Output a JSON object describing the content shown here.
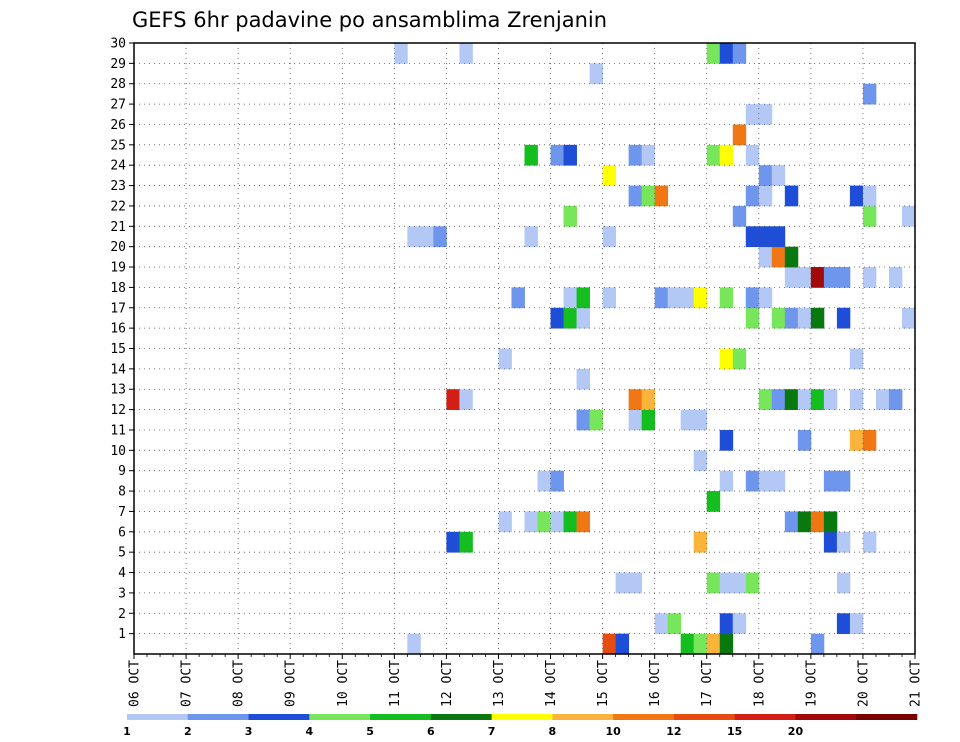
{
  "chart_data": {
    "type": "heatmap",
    "title": "GEFS 6hr padavine po ansamblima Zrenjanin",
    "xlabel": "",
    "ylabel": "",
    "x_tick_labels": [
      "06 OCT",
      "07 OCT",
      "08 OCT",
      "09 OCT",
      "10 OCT",
      "11 OCT",
      "12 OCT",
      "13 OCT",
      "14 OCT",
      "15 OCT",
      "16 OCT",
      "17 OCT",
      "18 OCT",
      "19 OCT",
      "20 OCT",
      "21 OCT"
    ],
    "y_tick_labels": [
      "1",
      "2",
      "3",
      "4",
      "5",
      "6",
      "7",
      "8",
      "9",
      "10",
      "11",
      "12",
      "13",
      "14",
      "15",
      "16",
      "17",
      "18",
      "19",
      "20",
      "21",
      "22",
      "23",
      "24",
      "25",
      "26",
      "27",
      "28",
      "29",
      "30"
    ],
    "xlim": [
      0,
      60
    ],
    "ylim": [
      0,
      30
    ],
    "x_unit": "6-hour steps from 06 OCT 00Z",
    "grid": true,
    "legend": {
      "placement": "bottom",
      "bins": [
        {
          "label": "1",
          "color": "#b4c8f5"
        },
        {
          "label": "2",
          "color": "#6e96ed"
        },
        {
          "label": "3",
          "color": "#1e4ed8"
        },
        {
          "label": "4",
          "color": "#78e65a"
        },
        {
          "label": "5",
          "color": "#14be1e"
        },
        {
          "label": "6",
          "color": "#08780f"
        },
        {
          "label": "7",
          "color": "#ffff00"
        },
        {
          "label": "8",
          "color": "#fab43c"
        },
        {
          "label": "10",
          "color": "#f07814"
        },
        {
          "label": "12",
          "color": "#e64b0f"
        },
        {
          "label": "15",
          "color": "#d21e14"
        },
        {
          "label": "20",
          "color": "#a00a0a"
        },
        {
          "label": "",
          "color": "#780000"
        }
      ]
    },
    "cells": [
      {
        "t": 21,
        "m": 0,
        "c": 0
      },
      {
        "t": 36,
        "m": 0,
        "c": 9
      },
      {
        "t": 37,
        "m": 0,
        "c": 2
      },
      {
        "t": 42,
        "m": 0,
        "c": 4
      },
      {
        "t": 43,
        "m": 0,
        "c": 3
      },
      {
        "t": 44,
        "m": 0,
        "c": 7
      },
      {
        "t": 45,
        "m": 0,
        "c": 5
      },
      {
        "t": 52,
        "m": 0,
        "c": 1
      },
      {
        "t": 40,
        "m": 1,
        "c": 0
      },
      {
        "t": 41,
        "m": 1,
        "c": 3
      },
      {
        "t": 45,
        "m": 1,
        "c": 2
      },
      {
        "t": 46,
        "m": 1,
        "c": 0
      },
      {
        "t": 54,
        "m": 1,
        "c": 2
      },
      {
        "t": 55,
        "m": 1,
        "c": 0
      },
      {
        "t": 37,
        "m": 3,
        "c": 0
      },
      {
        "t": 38,
        "m": 3,
        "c": 0
      },
      {
        "t": 44,
        "m": 3,
        "c": 3
      },
      {
        "t": 45,
        "m": 3,
        "c": 0
      },
      {
        "t": 46,
        "m": 3,
        "c": 0
      },
      {
        "t": 47,
        "m": 3,
        "c": 3
      },
      {
        "t": 54,
        "m": 3,
        "c": 0
      },
      {
        "t": 24,
        "m": 5,
        "c": 2
      },
      {
        "t": 25,
        "m": 5,
        "c": 4
      },
      {
        "t": 43,
        "m": 5,
        "c": 7
      },
      {
        "t": 53,
        "m": 5,
        "c": 2
      },
      {
        "t": 54,
        "m": 5,
        "c": 0
      },
      {
        "t": 56,
        "m": 5,
        "c": 0
      },
      {
        "t": 28,
        "m": 6,
        "c": 0
      },
      {
        "t": 30,
        "m": 6,
        "c": 0
      },
      {
        "t": 31,
        "m": 6,
        "c": 3
      },
      {
        "t": 32,
        "m": 6,
        "c": 0
      },
      {
        "t": 33,
        "m": 6,
        "c": 4
      },
      {
        "t": 34,
        "m": 6,
        "c": 8
      },
      {
        "t": 50,
        "m": 6,
        "c": 1
      },
      {
        "t": 51,
        "m": 6,
        "c": 5
      },
      {
        "t": 52,
        "m": 6,
        "c": 8
      },
      {
        "t": 53,
        "m": 6,
        "c": 5
      },
      {
        "t": 44,
        "m": 7,
        "c": 4
      },
      {
        "t": 31,
        "m": 8,
        "c": 0
      },
      {
        "t": 32,
        "m": 8,
        "c": 1
      },
      {
        "t": 45,
        "m": 8,
        "c": 0
      },
      {
        "t": 47,
        "m": 8,
        "c": 1
      },
      {
        "t": 48,
        "m": 8,
        "c": 0
      },
      {
        "t": 49,
        "m": 8,
        "c": 0
      },
      {
        "t": 53,
        "m": 8,
        "c": 1
      },
      {
        "t": 54,
        "m": 8,
        "c": 1
      },
      {
        "t": 43,
        "m": 9,
        "c": 0
      },
      {
        "t": 45,
        "m": 10,
        "c": 2
      },
      {
        "t": 51,
        "m": 10,
        "c": 1
      },
      {
        "t": 55,
        "m": 10,
        "c": 7
      },
      {
        "t": 56,
        "m": 10,
        "c": 8
      },
      {
        "t": 34,
        "m": 11,
        "c": 1
      },
      {
        "t": 35,
        "m": 11,
        "c": 3
      },
      {
        "t": 38,
        "m": 11,
        "c": 0
      },
      {
        "t": 39,
        "m": 11,
        "c": 4
      },
      {
        "t": 42,
        "m": 11,
        "c": 0
      },
      {
        "t": 43,
        "m": 11,
        "c": 0
      },
      {
        "t": 24,
        "m": 12,
        "c": 10
      },
      {
        "t": 25,
        "m": 12,
        "c": 0
      },
      {
        "t": 38,
        "m": 12,
        "c": 8
      },
      {
        "t": 39,
        "m": 12,
        "c": 7
      },
      {
        "t": 48,
        "m": 12,
        "c": 3
      },
      {
        "t": 49,
        "m": 12,
        "c": 1
      },
      {
        "t": 50,
        "m": 12,
        "c": 5
      },
      {
        "t": 51,
        "m": 12,
        "c": 0
      },
      {
        "t": 52,
        "m": 12,
        "c": 4
      },
      {
        "t": 53,
        "m": 12,
        "c": 0
      },
      {
        "t": 55,
        "m": 12,
        "c": 0
      },
      {
        "t": 57,
        "m": 12,
        "c": 0
      },
      {
        "t": 58,
        "m": 12,
        "c": 1
      },
      {
        "t": 34,
        "m": 13,
        "c": 0
      },
      {
        "t": 28,
        "m": 14,
        "c": 0
      },
      {
        "t": 45,
        "m": 14,
        "c": 6
      },
      {
        "t": 46,
        "m": 14,
        "c": 3
      },
      {
        "t": 55,
        "m": 14,
        "c": 0
      },
      {
        "t": 32,
        "m": 16,
        "c": 2
      },
      {
        "t": 33,
        "m": 16,
        "c": 4
      },
      {
        "t": 34,
        "m": 16,
        "c": 0
      },
      {
        "t": 47,
        "m": 16,
        "c": 3
      },
      {
        "t": 49,
        "m": 16,
        "c": 3
      },
      {
        "t": 50,
        "m": 16,
        "c": 1
      },
      {
        "t": 51,
        "m": 16,
        "c": 0
      },
      {
        "t": 52,
        "m": 16,
        "c": 5
      },
      {
        "t": 54,
        "m": 16,
        "c": 2
      },
      {
        "t": 59,
        "m": 16,
        "c": 0
      },
      {
        "t": 29,
        "m": 17,
        "c": 1
      },
      {
        "t": 33,
        "m": 17,
        "c": 0
      },
      {
        "t": 34,
        "m": 17,
        "c": 4
      },
      {
        "t": 36,
        "m": 17,
        "c": 0
      },
      {
        "t": 40,
        "m": 17,
        "c": 1
      },
      {
        "t": 41,
        "m": 17,
        "c": 0
      },
      {
        "t": 42,
        "m": 17,
        "c": 0
      },
      {
        "t": 43,
        "m": 17,
        "c": 6
      },
      {
        "t": 45,
        "m": 17,
        "c": 3
      },
      {
        "t": 47,
        "m": 17,
        "c": 1
      },
      {
        "t": 48,
        "m": 17,
        "c": 0
      },
      {
        "t": 50,
        "m": 18,
        "c": 0
      },
      {
        "t": 51,
        "m": 18,
        "c": 0
      },
      {
        "t": 52,
        "m": 18,
        "c": 11
      },
      {
        "t": 53,
        "m": 18,
        "c": 1
      },
      {
        "t": 54,
        "m": 18,
        "c": 1
      },
      {
        "t": 56,
        "m": 18,
        "c": 0
      },
      {
        "t": 58,
        "m": 18,
        "c": 0
      },
      {
        "t": 48,
        "m": 19,
        "c": 0
      },
      {
        "t": 49,
        "m": 19,
        "c": 8
      },
      {
        "t": 50,
        "m": 19,
        "c": 5
      },
      {
        "t": 21,
        "m": 20,
        "c": 0
      },
      {
        "t": 22,
        "m": 20,
        "c": 0
      },
      {
        "t": 23,
        "m": 20,
        "c": 1
      },
      {
        "t": 30,
        "m": 20,
        "c": 0
      },
      {
        "t": 36,
        "m": 20,
        "c": 0
      },
      {
        "t": 47,
        "m": 20,
        "c": 2
      },
      {
        "t": 48,
        "m": 20,
        "c": 2
      },
      {
        "t": 49,
        "m": 20,
        "c": 2
      },
      {
        "t": 33,
        "m": 21,
        "c": 3
      },
      {
        "t": 46,
        "m": 21,
        "c": 1
      },
      {
        "t": 56,
        "m": 21,
        "c": 3
      },
      {
        "t": 59,
        "m": 21,
        "c": 0
      },
      {
        "t": 38,
        "m": 22,
        "c": 1
      },
      {
        "t": 39,
        "m": 22,
        "c": 3
      },
      {
        "t": 40,
        "m": 22,
        "c": 8
      },
      {
        "t": 47,
        "m": 22,
        "c": 1
      },
      {
        "t": 48,
        "m": 22,
        "c": 0
      },
      {
        "t": 50,
        "m": 22,
        "c": 2
      },
      {
        "t": 55,
        "m": 22,
        "c": 2
      },
      {
        "t": 56,
        "m": 22,
        "c": 0
      },
      {
        "t": 36,
        "m": 23,
        "c": 6
      },
      {
        "t": 48,
        "m": 23,
        "c": 1
      },
      {
        "t": 49,
        "m": 23,
        "c": 0
      },
      {
        "t": 30,
        "m": 24,
        "c": 4
      },
      {
        "t": 32,
        "m": 24,
        "c": 1
      },
      {
        "t": 33,
        "m": 24,
        "c": 2
      },
      {
        "t": 38,
        "m": 24,
        "c": 1
      },
      {
        "t": 39,
        "m": 24,
        "c": 0
      },
      {
        "t": 44,
        "m": 24,
        "c": 3
      },
      {
        "t": 45,
        "m": 24,
        "c": 6
      },
      {
        "t": 47,
        "m": 24,
        "c": 0
      },
      {
        "t": 46,
        "m": 25,
        "c": 8
      },
      {
        "t": 47,
        "m": 26,
        "c": 0
      },
      {
        "t": 48,
        "m": 26,
        "c": 0
      },
      {
        "t": 56,
        "m": 27,
        "c": 1
      },
      {
        "t": 35,
        "m": 28,
        "c": 0
      },
      {
        "t": 20,
        "m": 29,
        "c": 0
      },
      {
        "t": 25,
        "m": 29,
        "c": 0
      },
      {
        "t": 44,
        "m": 29,
        "c": 3
      },
      {
        "t": 45,
        "m": 29,
        "c": 2
      },
      {
        "t": 46,
        "m": 29,
        "c": 1
      }
    ]
  }
}
